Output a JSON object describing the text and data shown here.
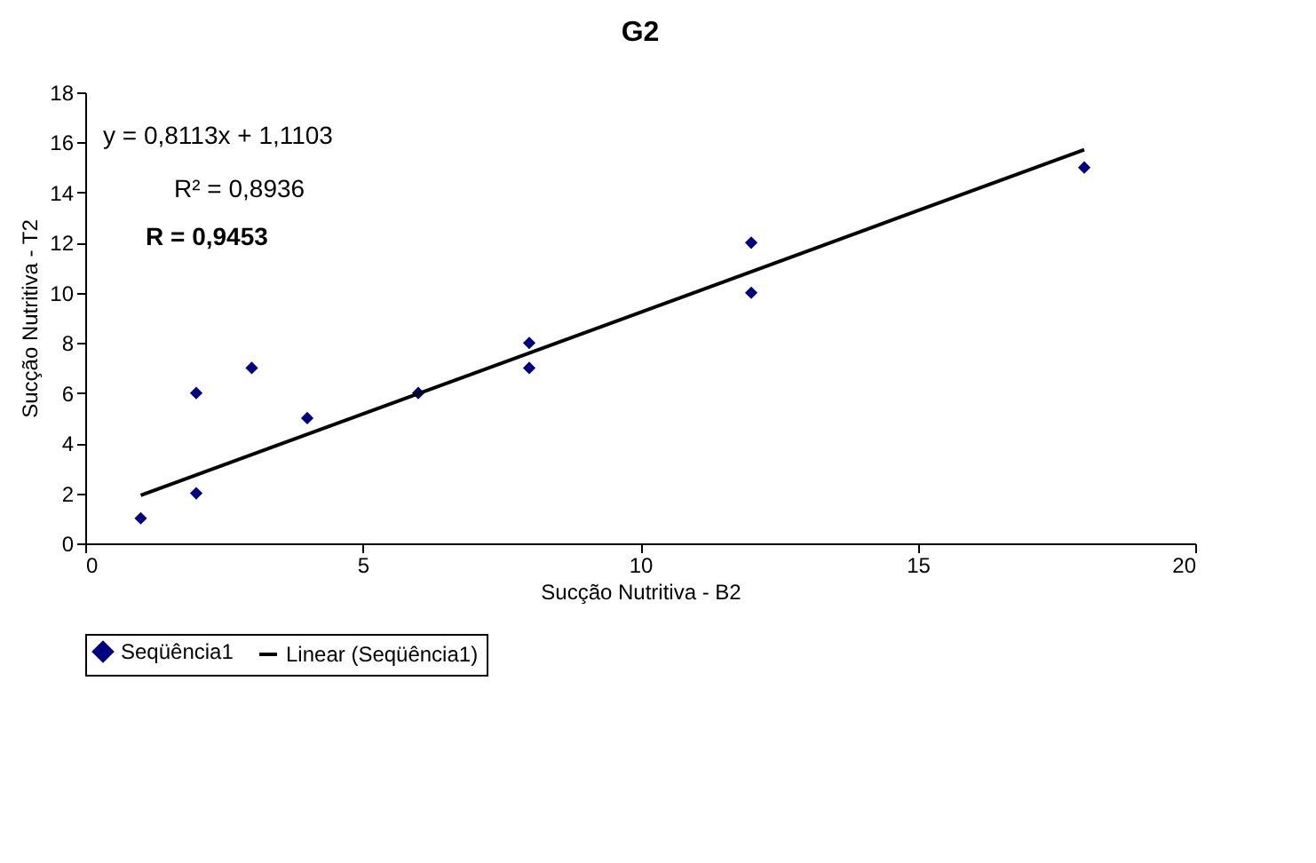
{
  "chart_data": {
    "type": "scatter",
    "title": "G2",
    "xlabel": "Sucção Nutritiva - B2",
    "ylabel": "Sucção Nutritiva - T2",
    "series": [
      {
        "name": "Seqüência1",
        "marker": "diamond",
        "color": "#000080",
        "x": [
          1,
          2,
          2,
          3,
          4,
          6,
          8,
          8,
          12,
          12,
          18
        ],
        "values": [
          1,
          2,
          6,
          7,
          5,
          6,
          8,
          7,
          12,
          10,
          15
        ]
      },
      {
        "name": "Linear (Seqüência1)",
        "type": "line",
        "marker": "none",
        "line_style": "solid",
        "color": "#000000",
        "x": [
          1,
          18
        ],
        "values": [
          1.92,
          15.71
        ]
      }
    ],
    "annotations": [
      "y = 0,8113x + 1,1103",
      "R² = 0,8936",
      "R = 0,9453"
    ],
    "xlim": [
      0,
      20
    ],
    "ylim": [
      0,
      18
    ],
    "xticks": [
      0,
      5,
      10,
      15,
      20
    ],
    "yticks": [
      0,
      2,
      4,
      6,
      8,
      10,
      12,
      14,
      16,
      18
    ],
    "grid": false,
    "legend": "bottom"
  }
}
